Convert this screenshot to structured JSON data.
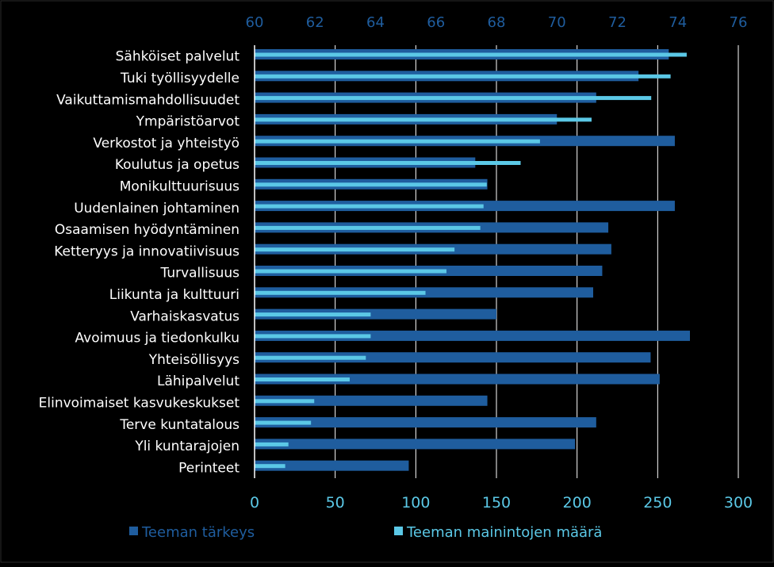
{
  "chart_data": {
    "type": "bar",
    "orientation": "horizontal",
    "title": "",
    "categories": [
      "Sähköiset palvelut",
      "Tuki työllisyydelle",
      "Vaikuttamismahdollisuudet",
      "Ympäristöarvot",
      "Verkostot ja yhteistyö",
      "Koulutus ja opetus",
      "Monikulttuurisuus",
      "Uudenlainen johtaminen",
      "Osaamisen hyödyntäminen",
      "Ketteryys ja innovatiivisuus",
      "Turvallisuus",
      "Liikunta ja kulttuuri",
      "Varhaiskasvatus",
      "Avoimuus ja tiedonkulku",
      "Yhteisöllisyys",
      "Lähipalvelut",
      "Elinvoimaiset kasvukeskukset",
      "Terve kuntatalous",
      "Yli kuntarajojen",
      "Perinteet"
    ],
    "series": [
      {
        "name": "Teeman tärkeys",
        "color": "#1f5d9e",
        "axis": "top",
        "values": [
          73.7,
          72.7,
          71.3,
          70.0,
          73.9,
          67.3,
          67.7,
          73.9,
          71.7,
          71.8,
          71.5,
          71.2,
          68.0,
          74.4,
          73.1,
          73.4,
          67.7,
          71.3,
          70.6,
          65.1
        ]
      },
      {
        "name": "Teeman mainintojen määrä",
        "color": "#5bc8e6",
        "axis": "bottom",
        "values": [
          268,
          258,
          246,
          209,
          177,
          165,
          144,
          142,
          140,
          124,
          119,
          106,
          72,
          72,
          69,
          59,
          37,
          35,
          21,
          19
        ]
      }
    ],
    "top_axis": {
      "range": [
        60,
        76
      ],
      "ticks": [
        "60",
        "62",
        "64",
        "66",
        "68",
        "70",
        "72",
        "74",
        "76"
      ]
    },
    "bottom_axis": {
      "range": [
        0,
        300
      ],
      "ticks": [
        "0",
        "50",
        "100",
        "150",
        "200",
        "250",
        "300"
      ]
    },
    "grid": true,
    "legend": {
      "position": "bottom-left",
      "entries": [
        "Teeman tärkeys",
        "Teeman mainintojen määrä"
      ]
    }
  }
}
